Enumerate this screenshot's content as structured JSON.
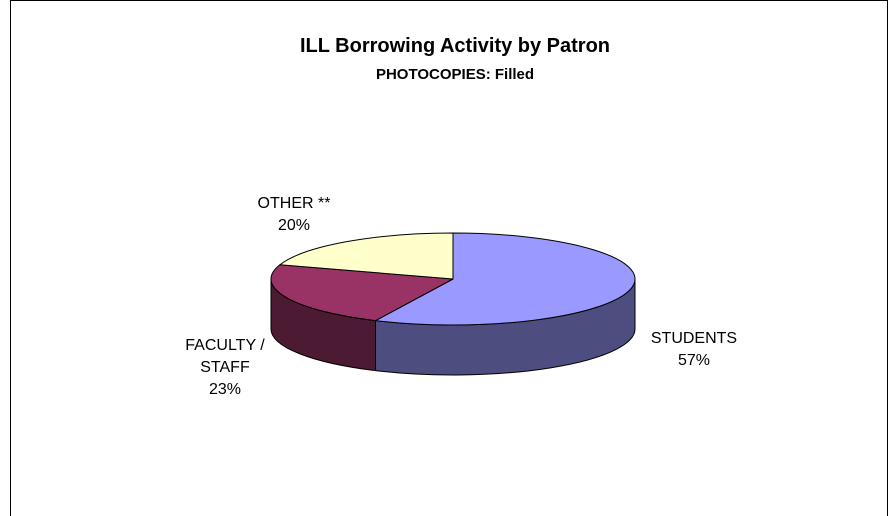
{
  "chart_data": {
    "type": "pie",
    "title": "ILL Borrowing Activity by Patron",
    "subtitle": "PHOTOCOPIES: Filled",
    "slices": [
      {
        "name": "STUDENTS",
        "label_lines": [
          "STUDENTS",
          "57%"
        ],
        "value": 57,
        "top_color": "#9999FF",
        "side_color": "#4D4D80"
      },
      {
        "name": "FACULTY / STAFF",
        "label_lines": [
          "FACULTY /",
          "STAFF",
          "23%"
        ],
        "value": 23,
        "top_color": "#993366",
        "side_color": "#4D1A33"
      },
      {
        "name": "OTHER **",
        "label_lines": [
          "OTHER **",
          "20%"
        ],
        "value": 20,
        "top_color": "#FFFFCC",
        "side_color": "#808066"
      }
    ],
    "legend": "none",
    "style": "3d-pie"
  }
}
